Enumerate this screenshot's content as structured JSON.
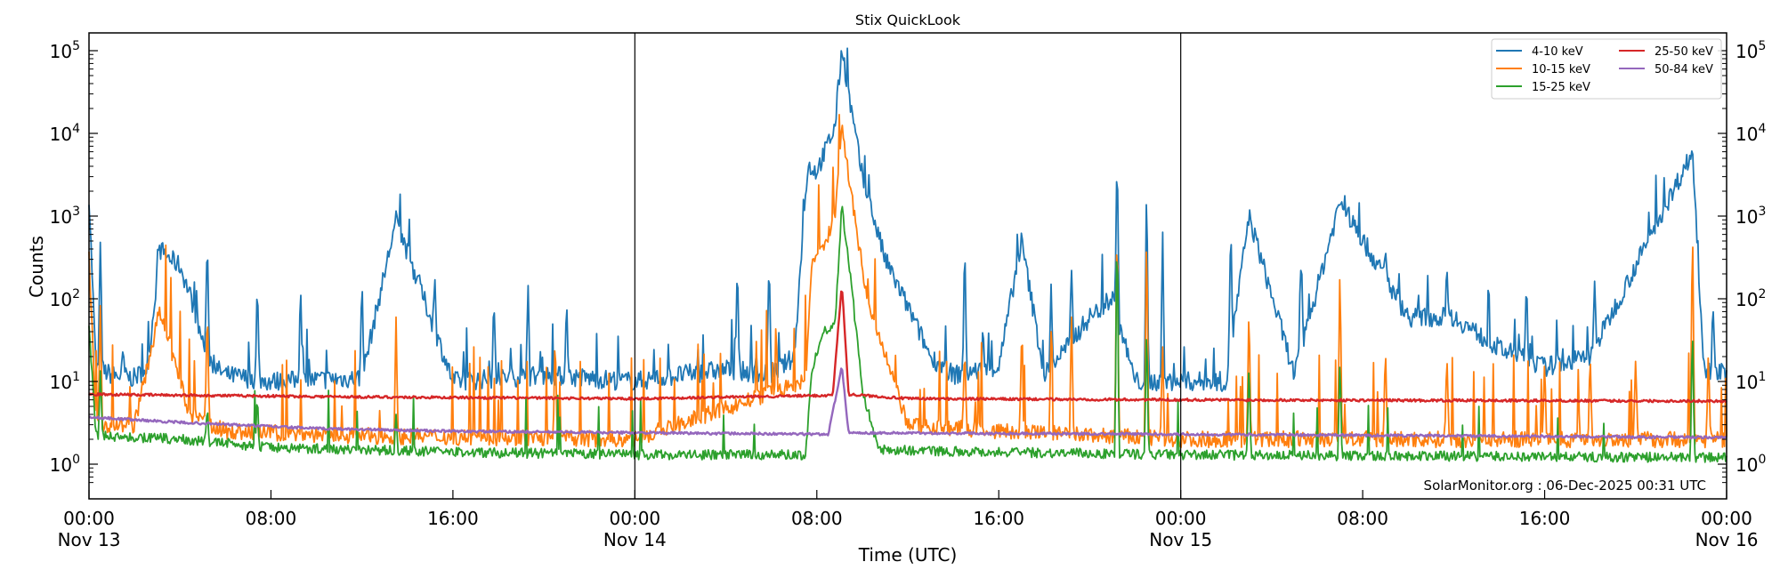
{
  "chart_data": {
    "type": "line",
    "title": "Stix QuickLook",
    "xlabel": "Time (UTC)",
    "ylabel": "Counts",
    "yscale": "log",
    "ylim": [
      0.55,
      200000
    ],
    "xlim_hours": [
      0,
      72
    ],
    "x_ticks": [
      {
        "hour": 0,
        "time": "00:00",
        "date": "Nov 13"
      },
      {
        "hour": 8,
        "time": "08:00",
        "date": ""
      },
      {
        "hour": 16,
        "time": "16:00",
        "date": ""
      },
      {
        "hour": 24,
        "time": "00:00",
        "date": "Nov 14"
      },
      {
        "hour": 32,
        "time": "08:00",
        "date": ""
      },
      {
        "hour": 40,
        "time": "16:00",
        "date": ""
      },
      {
        "hour": 48,
        "time": "00:00",
        "date": "Nov 15"
      },
      {
        "hour": 56,
        "time": "08:00",
        "date": ""
      },
      {
        "hour": 64,
        "time": "16:00",
        "date": ""
      },
      {
        "hour": 72,
        "time": "00:00",
        "date": "Nov 16"
      }
    ],
    "y_ticks": [
      {
        "exp": 0,
        "base": "10",
        "sup": "0"
      },
      {
        "exp": 1,
        "base": "10",
        "sup": "1"
      },
      {
        "exp": 2,
        "base": "10",
        "sup": "2"
      },
      {
        "exp": 3,
        "base": "10",
        "sup": "3"
      },
      {
        "exp": 4,
        "base": "10",
        "sup": "4"
      },
      {
        "exp": 5,
        "base": "10",
        "sup": "5"
      }
    ],
    "day_boundaries_hours": [
      24,
      48
    ],
    "grid": false,
    "legend_position": "upper right",
    "legend_columns": 2,
    "annotation": "SolarMonitor.org : 06-Dec-2025 00:31 UTC",
    "series": [
      {
        "name": "4-10 keV",
        "color": "#1f77b4",
        "baseline": 10,
        "points": [
          [
            0,
            1800
          ],
          [
            0.3,
            15
          ],
          [
            1,
            12
          ],
          [
            2,
            11
          ],
          [
            2.6,
            15
          ],
          [
            3.1,
            400
          ],
          [
            3.6,
            300
          ],
          [
            4,
            250
          ],
          [
            4.5,
            100
          ],
          [
            5,
            30
          ],
          [
            5.5,
            15
          ],
          [
            6,
            12
          ],
          [
            8,
            10
          ],
          [
            12,
            11
          ],
          [
            13.5,
            900
          ],
          [
            16,
            10
          ],
          [
            20,
            12
          ],
          [
            24,
            10
          ],
          [
            26,
            12
          ],
          [
            28,
            14
          ],
          [
            30,
            12
          ],
          [
            31,
            20
          ],
          [
            31.6,
            4000
          ],
          [
            32,
            3500
          ],
          [
            32.8,
            12000
          ],
          [
            33.1,
            110000
          ],
          [
            33.5,
            20000
          ],
          [
            34,
            3000
          ],
          [
            35,
            300
          ],
          [
            36,
            80
          ],
          [
            37,
            20
          ],
          [
            38,
            12
          ],
          [
            40,
            15
          ],
          [
            41,
            500
          ],
          [
            42,
            12
          ],
          [
            44,
            60
          ],
          [
            45,
            100
          ],
          [
            46,
            10
          ],
          [
            48,
            10
          ],
          [
            50,
            10
          ],
          [
            51,
            1000
          ],
          [
            53,
            12
          ],
          [
            55,
            1500
          ],
          [
            58,
            60
          ],
          [
            60,
            60
          ],
          [
            62,
            25
          ],
          [
            64,
            15
          ],
          [
            66,
            20
          ],
          [
            68,
            250
          ],
          [
            70.5,
            6000
          ],
          [
            71,
            15
          ],
          [
            72,
            12
          ]
        ],
        "spikes": [
          [
            0.5,
            600
          ],
          [
            1.5,
            25
          ],
          [
            5.2,
            650
          ],
          [
            7.4,
            180
          ],
          [
            9.3,
            180
          ],
          [
            12,
            200
          ],
          [
            14.5,
            200
          ],
          [
            15.2,
            200
          ],
          [
            17.8,
            110
          ],
          [
            19.3,
            160
          ],
          [
            21,
            110
          ],
          [
            28.5,
            250
          ],
          [
            29.9,
            370
          ],
          [
            38.5,
            600
          ],
          [
            42.3,
            150
          ],
          [
            43.2,
            220
          ],
          [
            45.2,
            8000
          ],
          [
            46.5,
            3500
          ],
          [
            47.2,
            800
          ],
          [
            50.2,
            1000
          ],
          [
            53.3,
            400
          ],
          [
            57,
            400
          ],
          [
            59.7,
            280
          ],
          [
            63.2,
            180
          ],
          [
            66.2,
            180
          ],
          [
            69.2,
            250
          ],
          [
            71.4,
            100
          ]
        ]
      },
      {
        "name": "10-15 keV",
        "color": "#ff7f0e",
        "baseline": 2,
        "points": [
          [
            0,
            350
          ],
          [
            0.3,
            3
          ],
          [
            2,
            3
          ],
          [
            3.1,
            70
          ],
          [
            3.7,
            20
          ],
          [
            4.4,
            4
          ],
          [
            6,
            2.5
          ],
          [
            12,
            2.2
          ],
          [
            24,
            2
          ],
          [
            31.5,
            10
          ],
          [
            31.8,
            300
          ],
          [
            32.3,
            400
          ],
          [
            32.8,
            1000
          ],
          [
            33.1,
            15000
          ],
          [
            33.4,
            3000
          ],
          [
            34.2,
            100
          ],
          [
            35,
            20
          ],
          [
            36,
            3
          ],
          [
            40,
            2.5
          ],
          [
            48,
            2
          ],
          [
            60,
            2
          ],
          [
            72,
            2
          ]
        ],
        "spikes": [
          [
            0.5,
            100
          ],
          [
            5.2,
            100
          ],
          [
            13.5,
            60
          ],
          [
            20.5,
            30
          ],
          [
            29.9,
            10
          ],
          [
            38.5,
            30
          ],
          [
            41,
            30
          ],
          [
            42.3,
            40
          ],
          [
            43.2,
            60
          ],
          [
            45.2,
            1500
          ],
          [
            46.5,
            1000
          ],
          [
            47.2,
            30
          ],
          [
            51,
            100
          ],
          [
            55,
            300
          ],
          [
            57,
            30
          ],
          [
            59.7,
            25
          ],
          [
            64,
            20
          ],
          [
            66,
            25
          ],
          [
            68,
            20
          ],
          [
            70.5,
            1200
          ],
          [
            71.2,
            25
          ]
        ]
      },
      {
        "name": "15-25 keV",
        "color": "#2ca02c",
        "baseline": 1.3,
        "points": [
          [
            0,
            50
          ],
          [
            0.3,
            2.2
          ],
          [
            4,
            2
          ],
          [
            8,
            1.6
          ],
          [
            16,
            1.4
          ],
          [
            24,
            1.3
          ],
          [
            31.5,
            1.3
          ],
          [
            31.8,
            15
          ],
          [
            32.3,
            40
          ],
          [
            32.8,
            50
          ],
          [
            33.1,
            1300
          ],
          [
            33.4,
            300
          ],
          [
            34,
            8
          ],
          [
            34.7,
            1.5
          ],
          [
            40,
            1.4
          ],
          [
            48,
            1.3
          ],
          [
            72,
            1.2
          ]
        ],
        "spikes": [
          [
            0.5,
            15
          ],
          [
            5.2,
            5
          ],
          [
            7.4,
            7
          ],
          [
            13.5,
            4
          ],
          [
            45.2,
            1300
          ],
          [
            46.5,
            60
          ],
          [
            51,
            20
          ],
          [
            55,
            20
          ],
          [
            70.5,
            60
          ]
        ]
      },
      {
        "name": "25-50 keV",
        "color": "#d62728",
        "baseline": 6.5,
        "points": [
          [
            0,
            7
          ],
          [
            12,
            6.5
          ],
          [
            24,
            6.2
          ],
          [
            32.7,
            6.8
          ],
          [
            33.1,
            150
          ],
          [
            33.4,
            7
          ],
          [
            36,
            6.2
          ],
          [
            48,
            6
          ],
          [
            72,
            5.8
          ]
        ]
      },
      {
        "name": "50-84 keV",
        "color": "#9467bd",
        "baseline": 2.5,
        "points": [
          [
            0,
            3.7
          ],
          [
            4,
            3.2
          ],
          [
            10,
            2.7
          ],
          [
            16,
            2.5
          ],
          [
            24,
            2.4
          ],
          [
            32.5,
            2.3
          ],
          [
            33.1,
            15
          ],
          [
            33.4,
            2.4
          ],
          [
            48,
            2.3
          ],
          [
            60,
            2.2
          ],
          [
            72,
            2.1
          ]
        ]
      }
    ]
  }
}
